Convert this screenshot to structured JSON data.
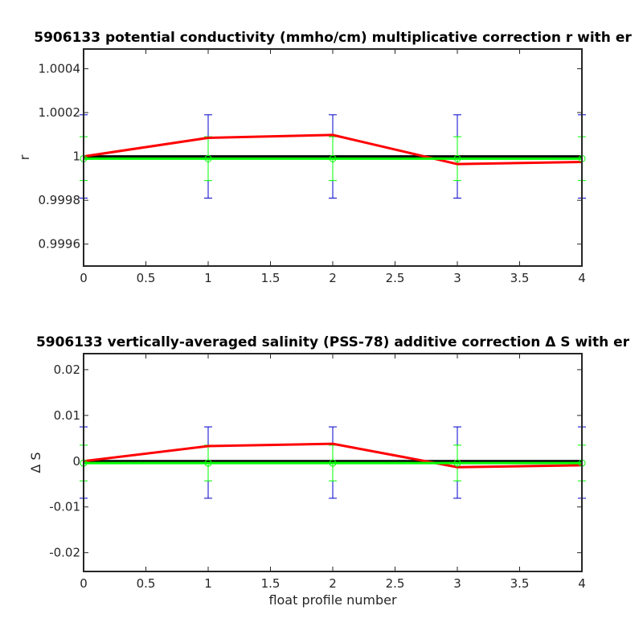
{
  "chart_data": [
    {
      "type": "line",
      "title": "5906133 potential conductivity (mmho/cm) multiplicative correction r with er",
      "xlabel": "",
      "ylabel": "r",
      "xlim": [
        0,
        4
      ],
      "ylim": [
        0.9995,
        1.00049
      ],
      "xticks": [
        "0",
        "0.5",
        "1",
        "1.5",
        "2",
        "2.5",
        "3",
        "3.5",
        "4"
      ],
      "yticks": [
        "0.9996",
        "0.9998",
        "1",
        "1.0002",
        "1.0004"
      ],
      "x": [
        0,
        1,
        2,
        3,
        4
      ],
      "series": [
        {
          "color": "#ff0000",
          "values": [
            1.0,
            1.000085,
            1.000098,
            0.999965,
            0.999975
          ]
        },
        {
          "color": "#000000",
          "values": [
            1,
            1,
            1,
            1,
            1
          ]
        },
        {
          "color": "#00ff00",
          "values": [
            0.99999,
            0.99999,
            0.99999,
            0.99999,
            0.99999
          ]
        }
      ],
      "errorbars": [
        {
          "color": "#0000cc",
          "center": 1.0,
          "halfwidth": 0.00019
        },
        {
          "color": "#00ff00",
          "center": 0.99999,
          "halfwidth": 0.0001
        }
      ]
    },
    {
      "type": "line",
      "title": "5906133 vertically-averaged salinity (PSS-78) additive correction Δ S with er",
      "xlabel": "float profile number",
      "ylabel": "Δ S",
      "xlim": [
        0,
        4
      ],
      "ylim": [
        -0.0241,
        0.0235
      ],
      "xticks": [
        "0",
        "0.5",
        "1",
        "1.5",
        "2",
        "2.5",
        "3",
        "3.5",
        "4"
      ],
      "yticks": [
        "-0.02",
        "-0.01",
        "0",
        "0.01",
        "0.02"
      ],
      "x": [
        0,
        1,
        2,
        3,
        4
      ],
      "series": [
        {
          "color": "#ff0000",
          "values": [
            0.0,
            0.0033,
            0.0038,
            -0.0013,
            -0.0009
          ]
        },
        {
          "color": "#000000",
          "values": [
            0,
            0,
            0,
            0,
            0
          ]
        },
        {
          "color": "#00ff00",
          "values": [
            -0.0004,
            -0.0004,
            -0.0004,
            -0.0004,
            -0.0004
          ]
        }
      ],
      "errorbars": [
        {
          "color": "#0000cc",
          "center": -0.0003,
          "halfwidth": 0.0078
        },
        {
          "color": "#00ff00",
          "center": -0.0004,
          "halfwidth": 0.0039
        }
      ]
    }
  ]
}
